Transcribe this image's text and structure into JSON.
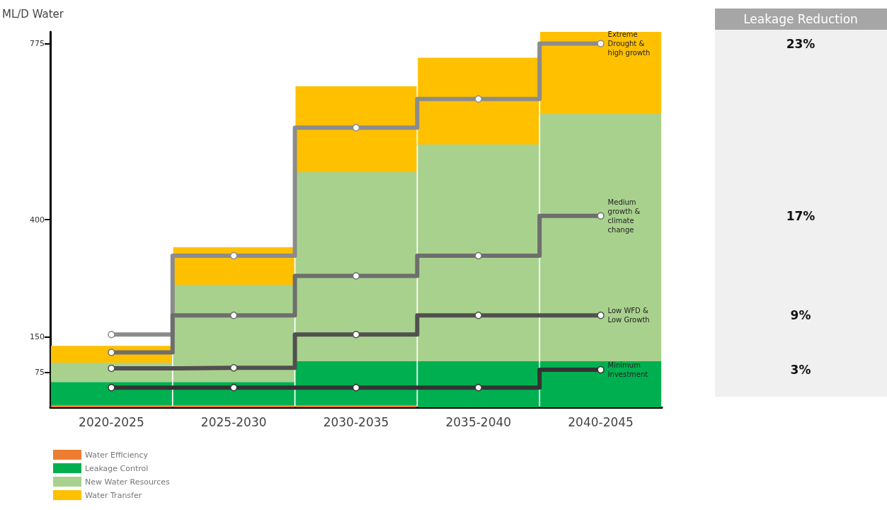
{
  "chart_data": {
    "type": "bar",
    "stacked": true,
    "ylabel": "ML/D Water",
    "categories": [
      "2020-2025",
      "2025-2030",
      "2030-2035",
      "2035-2040",
      "2040-2045"
    ],
    "series": [
      {
        "name": "Water Efficiency",
        "color": "#ed7d31",
        "values": [
          4,
          4,
          4,
          null,
          null
        ]
      },
      {
        "name": "Leakage Control",
        "color": "#00b050",
        "values": [
          50,
          50,
          94,
          98,
          98
        ]
      },
      {
        "name": "New Water Resources",
        "color": "#a9d18e",
        "values": [
          41,
          207,
          403,
          462,
          527
        ]
      },
      {
        "name": "Water Transfer",
        "color": "#ffc000",
        "values": [
          36,
          80,
          183,
          185,
          175
        ]
      },
      {
        "name": "Extreme Drought & high growth",
        "type": "step",
        "color": "#8c8c8c",
        "values": [
          155,
          323,
          596,
          657,
          775
        ]
      },
      {
        "name": "Medium growth & climate change",
        "type": "step",
        "color": "#6e6e6e",
        "values": [
          117,
          196,
          280,
          323,
          408
        ]
      },
      {
        "name": "Low WFD & Low Growth",
        "type": "step",
        "color": "#505050",
        "values": [
          83,
          84,
          155,
          196,
          196
        ]
      },
      {
        "name": "Minimum Investment",
        "type": "step",
        "color": "#333333",
        "values": [
          42,
          42,
          42,
          42,
          80
        ]
      }
    ],
    "ylim": [
      0,
      800
    ],
    "yticks": [
      75,
      150,
      400,
      775
    ],
    "grid": false,
    "legend": "bottom left",
    "marker": "circle",
    "line_style": "solid",
    "annotations": [
      "Leakage Reduction",
      "23%",
      "17%",
      "9%",
      "3%"
    ]
  }
}
